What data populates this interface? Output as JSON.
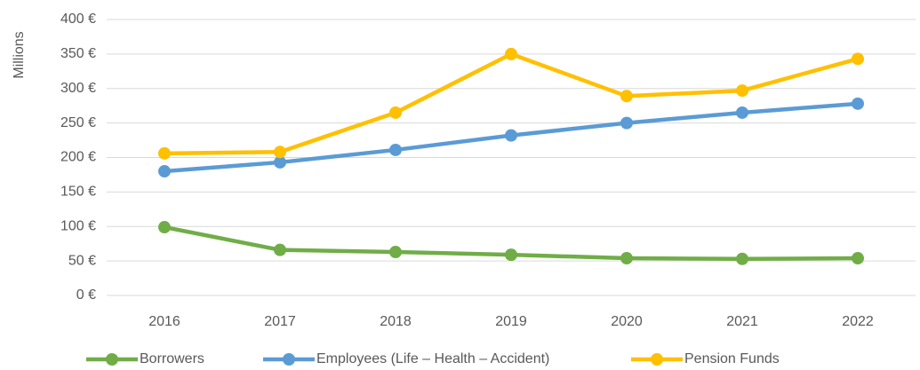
{
  "chart_data": {
    "type": "line",
    "y_axis_label": "Millions",
    "categories": [
      "2016",
      "2017",
      "2018",
      "2019",
      "2020",
      "2021",
      "2022"
    ],
    "series": [
      {
        "name": "Borrowers",
        "color": "#70ad47",
        "values": [
          99,
          66,
          63,
          59,
          54,
          53,
          54
        ]
      },
      {
        "name": "Employees (Life – Health – Accident)",
        "color": "#5b9bd5",
        "values": [
          180,
          193,
          211,
          232,
          250,
          265,
          278
        ]
      },
      {
        "name": "Pension Funds",
        "color": "#ffc000",
        "values": [
          206,
          208,
          265,
          350,
          289,
          297,
          343
        ]
      }
    ],
    "ylim": [
      0,
      400
    ],
    "yticks": [
      {
        "value": 0,
        "label": "0 €"
      },
      {
        "value": 50,
        "label": "50 €"
      },
      {
        "value": 100,
        "label": "100 €"
      },
      {
        "value": 150,
        "label": "150 €"
      },
      {
        "value": 200,
        "label": "200 €"
      },
      {
        "value": 250,
        "label": "250 €"
      },
      {
        "value": 300,
        "label": "300 €"
      },
      {
        "value": 350,
        "label": "350 €"
      },
      {
        "value": 400,
        "label": "400 €"
      }
    ],
    "grid": true,
    "legend": "bottom"
  }
}
